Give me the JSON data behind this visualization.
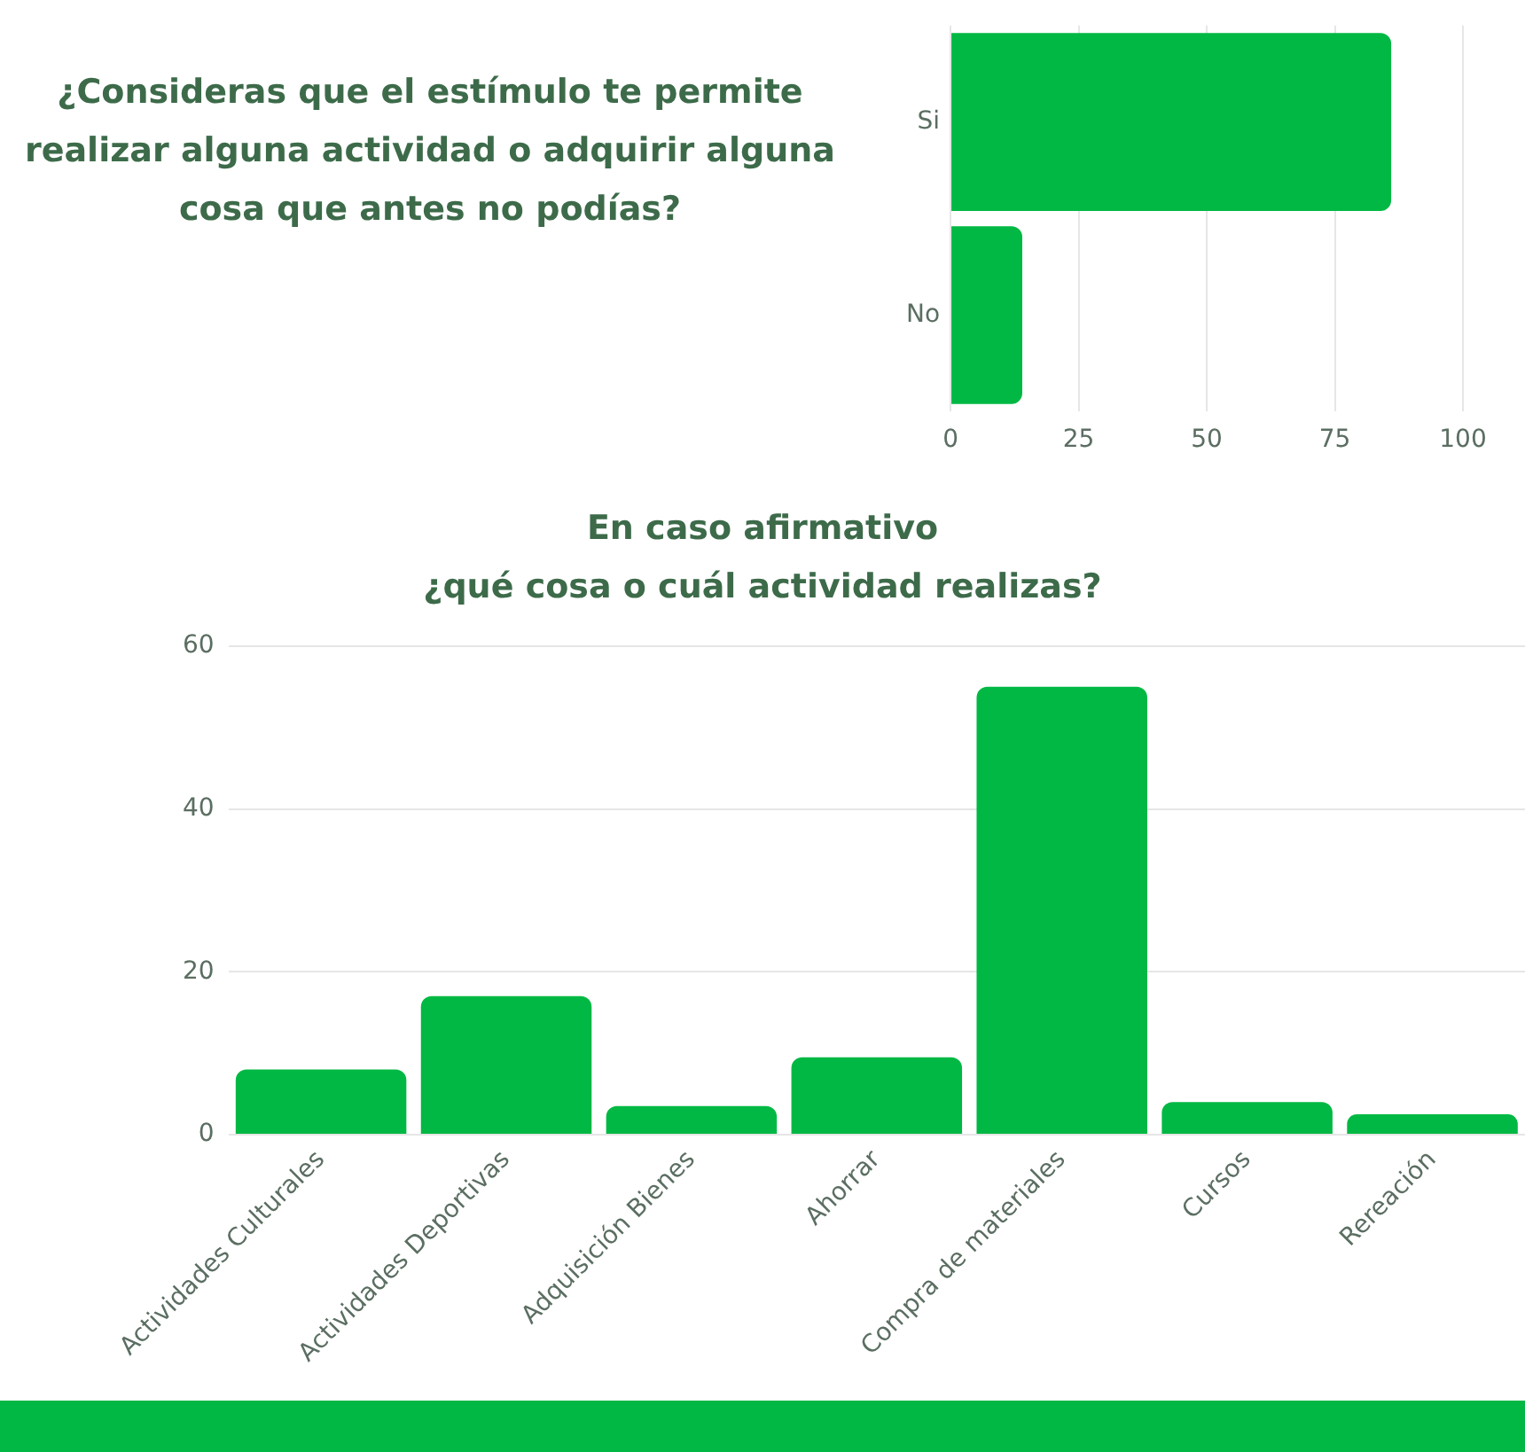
{
  "chart_data": [
    {
      "type": "bar",
      "title": "¿Consideras que el estímulo te permite realizar alguna actividad o adquirir alguna cosa que antes no podías?",
      "orientation": "horizontal",
      "categories": [
        "Si",
        "No"
      ],
      "values": [
        86,
        14
      ],
      "color": "#00b843",
      "xlim": [
        0,
        100
      ],
      "xticks": [
        0,
        25,
        50,
        75,
        100
      ],
      "grid": "x"
    },
    {
      "type": "bar",
      "title": "En caso afirmativo\n¿qué cosa o cuál actividad realizas?",
      "categories": [
        "Actividades Culturales",
        "Actividades Deportivas",
        "Adquisición Bienes",
        "Ahorrar",
        "Compra de materiales",
        "Cursos",
        "Rereación"
      ],
      "values": [
        8,
        17,
        3.5,
        9.5,
        55,
        4,
        2.5
      ],
      "color": "#00b843",
      "ylim": [
        0,
        60
      ],
      "yticks": [
        0,
        20,
        40,
        60
      ],
      "grid": "y"
    }
  ]
}
